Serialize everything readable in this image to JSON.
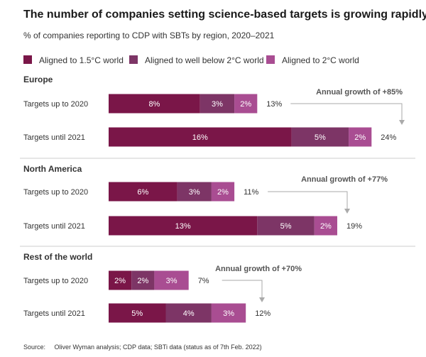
{
  "title": "The number of companies setting science-based targets is growing rapidly",
  "subtitle": "% of companies reporting to CDP with SBTs by region, 2020–2021",
  "source_label": "Source:",
  "source_text": "Oliver Wyman analysis; CDP data; SBTi data (status as of 7th Feb. 2022)",
  "colors": {
    "aligned_1_5": "#7a1648",
    "well_below_2": "#7d3566",
    "aligned_2": "#a94d92",
    "divider": "#cccccc",
    "connector": "#aaaaaa"
  },
  "chart_data": {
    "type": "bar",
    "orientation": "horizontal",
    "stacked": true,
    "legend": [
      {
        "name": "Aligned to 1.5°C world",
        "color": "#7a1648"
      },
      {
        "name": "Aligned to well below 2°C world",
        "color": "#7d3566"
      },
      {
        "name": "Aligned to 2°C world",
        "color": "#a94d92"
      }
    ],
    "groups": [
      {
        "region": "Europe",
        "growth_label": "Annual growth of +85%",
        "bars": [
          {
            "label": "Targets up to 2020",
            "values": [
              8,
              3,
              2
            ],
            "total": "13%"
          },
          {
            "label": "Targets until 2021",
            "values": [
              16,
              5,
              2
            ],
            "total": "24%"
          }
        ]
      },
      {
        "region": "North America",
        "growth_label": "Annual growth of +77%",
        "bars": [
          {
            "label": "Targets up to 2020",
            "values": [
              6,
              3,
              2
            ],
            "total": "11%"
          },
          {
            "label": "Targets until 2021",
            "values": [
              13,
              5,
              2
            ],
            "total": "19%"
          }
        ]
      },
      {
        "region": "Rest of the world",
        "growth_label": "Annual growth of +70%",
        "bars": [
          {
            "label": "Targets up to 2020",
            "values": [
              2,
              2,
              3
            ],
            "total": "7%"
          },
          {
            "label": "Targets until 2021",
            "values": [
              5,
              4,
              3
            ],
            "total": "12%"
          }
        ]
      }
    ]
  }
}
